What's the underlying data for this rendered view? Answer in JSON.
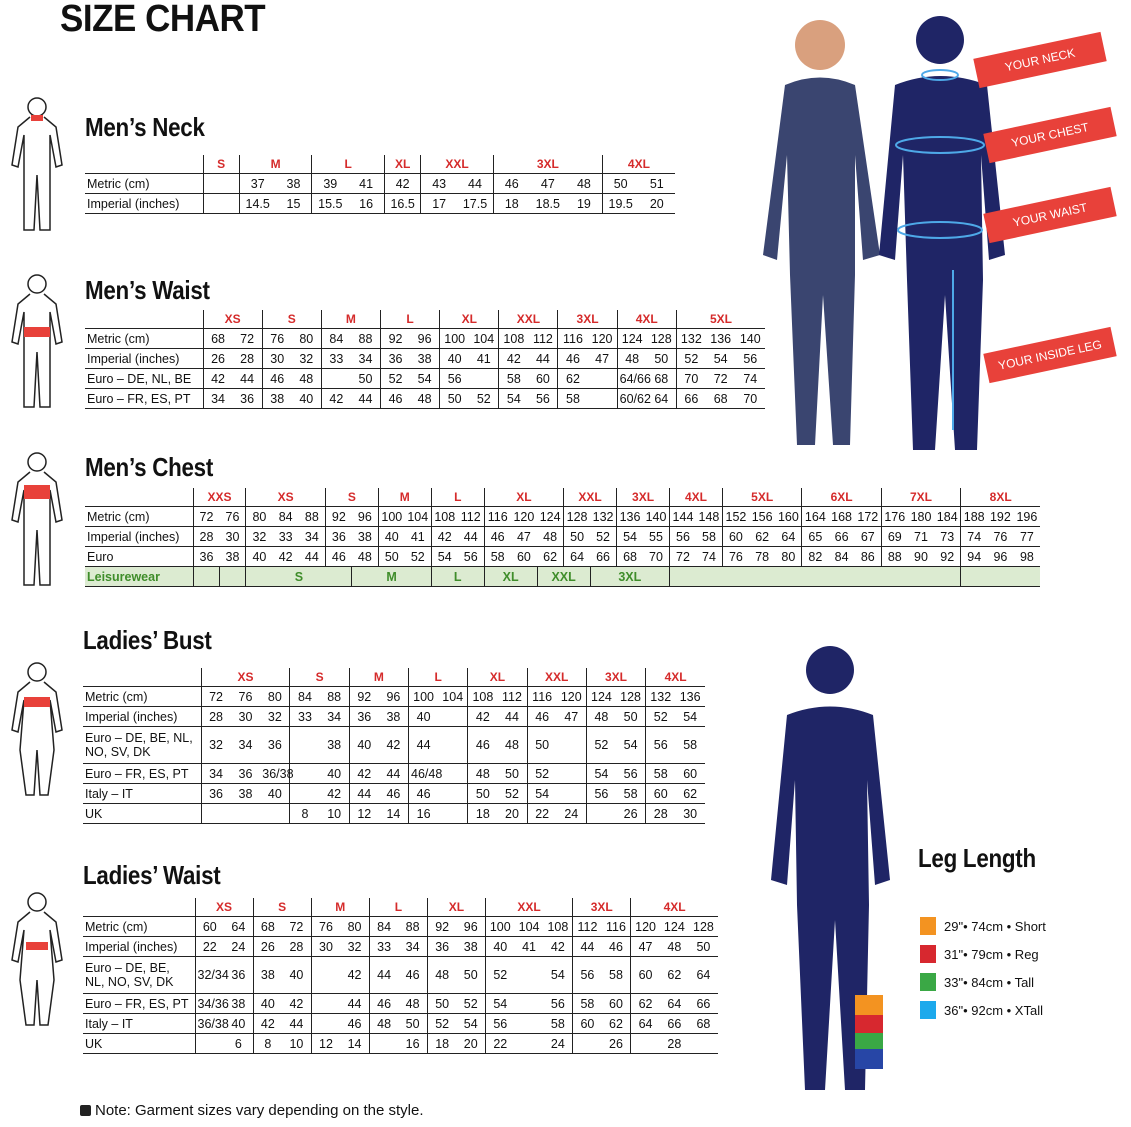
{
  "title": "SIZE CHART",
  "tables": [
    {
      "key": "mens_neck",
      "title": "Men’s Neck",
      "groups": [
        {
          "label": "S",
          "span": 1
        },
        {
          "label": "M",
          "span": 2
        },
        {
          "label": "L",
          "span": 2
        },
        {
          "label": "XL",
          "span": 1
        },
        {
          "label": "XXL",
          "span": 2
        },
        {
          "label": "3XL",
          "span": 3
        },
        {
          "label": "4XL",
          "span": 2
        }
      ],
      "rows": [
        {
          "label": "Metric (cm)",
          "cells": [
            "",
            "37",
            "38",
            "39",
            "41",
            "42",
            "43",
            "44",
            "46",
            "47",
            "48",
            "50",
            "51"
          ]
        },
        {
          "label": "Imperial (inches)",
          "cells": [
            "",
            "14.5",
            "15",
            "15.5",
            "16",
            "16.5",
            "17",
            "17.5",
            "18",
            "18.5",
            "19",
            "19.5",
            "20"
          ]
        }
      ]
    },
    {
      "key": "mens_waist",
      "title": "Men’s Waist",
      "groups": [
        {
          "label": "XS",
          "span": 2
        },
        {
          "label": "S",
          "span": 2
        },
        {
          "label": "M",
          "span": 2
        },
        {
          "label": "L",
          "span": 2
        },
        {
          "label": "XL",
          "span": 2
        },
        {
          "label": "XXL",
          "span": 2
        },
        {
          "label": "3XL",
          "span": 2
        },
        {
          "label": "4XL",
          "span": 2
        },
        {
          "label": "5XL",
          "span": 3
        }
      ],
      "rows": [
        {
          "label": "Metric (cm)",
          "cells": [
            "68",
            "72",
            "76",
            "80",
            "84",
            "88",
            "92",
            "96",
            "100",
            "104",
            "108",
            "112",
            "116",
            "120",
            "124",
            "128",
            "132",
            "136",
            "140"
          ]
        },
        {
          "label": "Imperial (inches)",
          "cells": [
            "26",
            "28",
            "30",
            "32",
            "33",
            "34",
            "36",
            "38",
            "40",
            "41",
            "42",
            "44",
            "46",
            "47",
            "48",
            "50",
            "52",
            "54",
            "56"
          ]
        },
        {
          "label": "Euro – DE, NL, BE",
          "cells": [
            "42",
            "44",
            "46",
            "48",
            "",
            "50",
            "52",
            "54",
            "56",
            "",
            "58",
            "60",
            "62",
            "",
            "64/66",
            "68",
            "70",
            "72",
            "74"
          ]
        },
        {
          "label": "Euro – FR, ES, PT",
          "cells": [
            "34",
            "36",
            "38",
            "40",
            "42",
            "44",
            "46",
            "48",
            "50",
            "52",
            "54",
            "56",
            "58",
            "",
            "60/62",
            "64",
            "66",
            "68",
            "70"
          ]
        }
      ]
    },
    {
      "key": "mens_chest",
      "title": "Men’s Chest",
      "groups": [
        {
          "label": "XXS",
          "span": 2
        },
        {
          "label": "XS",
          "span": 3
        },
        {
          "label": "S",
          "span": 2
        },
        {
          "label": "M",
          "span": 2
        },
        {
          "label": "L",
          "span": 2
        },
        {
          "label": "XL",
          "span": 3
        },
        {
          "label": "XXL",
          "span": 2
        },
        {
          "label": "3XL",
          "span": 2
        },
        {
          "label": "4XL",
          "span": 2
        },
        {
          "label": "5XL",
          "span": 3
        },
        {
          "label": "6XL",
          "span": 3
        },
        {
          "label": "7XL",
          "span": 3
        },
        {
          "label": "8XL",
          "span": 3
        }
      ],
      "rows": [
        {
          "label": "Metric (cm)",
          "cells": [
            "72",
            "76",
            "80",
            "84",
            "88",
            "92",
            "96",
            "100",
            "104",
            "108",
            "112",
            "116",
            "120",
            "124",
            "128",
            "132",
            "136",
            "140",
            "144",
            "148",
            "152",
            "156",
            "160",
            "164",
            "168",
            "172",
            "176",
            "180",
            "184",
            "188",
            "192",
            "196"
          ]
        },
        {
          "label": "Imperial (inches)",
          "cells": [
            "28",
            "30",
            "32",
            "33",
            "34",
            "36",
            "38",
            "40",
            "41",
            "42",
            "44",
            "46",
            "47",
            "48",
            "50",
            "52",
            "54",
            "55",
            "56",
            "58",
            "60",
            "62",
            "64",
            "65",
            "66",
            "67",
            "69",
            "71",
            "73",
            "74",
            "76",
            "77"
          ]
        },
        {
          "label": "Euro",
          "cells": [
            "36",
            "38",
            "40",
            "42",
            "44",
            "46",
            "48",
            "50",
            "52",
            "54",
            "56",
            "58",
            "60",
            "62",
            "64",
            "66",
            "68",
            "70",
            "72",
            "74",
            "76",
            "78",
            "80",
            "82",
            "84",
            "86",
            "88",
            "90",
            "92",
            "94",
            "96",
            "98"
          ]
        }
      ],
      "leisurewear": {
        "label": "Leisurewear",
        "spans": [
          {
            "label": "",
            "span": 1
          },
          {
            "label": "",
            "span": 1
          },
          {
            "label": "S",
            "span": 4
          },
          {
            "label": "M",
            "span": 3
          },
          {
            "label": "L",
            "span": 2
          },
          {
            "label": "XL",
            "span": 2
          },
          {
            "label": "XXL",
            "span": 2
          },
          {
            "label": "3XL",
            "span": 3
          },
          {
            "label": "",
            "span": 11
          },
          {
            "label": "",
            "span": 3
          }
        ]
      }
    },
    {
      "key": "ladies_bust",
      "title": "Ladies’ Bust",
      "groups": [
        {
          "label": "XS",
          "span": 3
        },
        {
          "label": "S",
          "span": 2
        },
        {
          "label": "M",
          "span": 2
        },
        {
          "label": "L",
          "span": 2
        },
        {
          "label": "XL",
          "span": 2
        },
        {
          "label": "XXL",
          "span": 2
        },
        {
          "label": "3XL",
          "span": 2
        },
        {
          "label": "4XL",
          "span": 2
        }
      ],
      "rows": [
        {
          "label": "Metric (cm)",
          "cells": [
            "72",
            "76",
            "80",
            "84",
            "88",
            "92",
            "96",
            "100",
            "104",
            "108",
            "112",
            "116",
            "120",
            "124",
            "128",
            "132",
            "136"
          ]
        },
        {
          "label": "Imperial (inches)",
          "cells": [
            "28",
            "30",
            "32",
            "33",
            "34",
            "36",
            "38",
            "40",
            "",
            "42",
            "44",
            "46",
            "47",
            "48",
            "50",
            "52",
            "54"
          ]
        },
        {
          "label": "Euro –  DE, BE, NL, NO, SV, DK",
          "tall": true,
          "cells": [
            "32",
            "34",
            "36",
            "",
            "38",
            "40",
            "42",
            "44",
            "",
            "46",
            "48",
            "50",
            "",
            "52",
            "54",
            "56",
            "58"
          ]
        },
        {
          "label": "Euro – FR, ES, PT",
          "cells": [
            "34",
            "36",
            "36/38",
            "",
            "40",
            "42",
            "44",
            "46/48",
            "",
            "48",
            "50",
            "52",
            "",
            "54",
            "56",
            "58",
            "60"
          ]
        },
        {
          "label": "Italy – IT",
          "cells": [
            "36",
            "38",
            "40",
            "",
            "42",
            "44",
            "46",
            "46",
            "",
            "50",
            "52",
            "54",
            "",
            "56",
            "58",
            "60",
            "62"
          ]
        },
        {
          "label": "UK",
          "cells": [
            "",
            "",
            "",
            "8",
            "10",
            "12",
            "14",
            "16",
            "",
            "18",
            "20",
            "22",
            "24",
            "",
            "26",
            "28",
            "30"
          ]
        }
      ]
    },
    {
      "key": "ladies_waist",
      "title": "Ladies’ Waist",
      "groups": [
        {
          "label": "XS",
          "span": 2
        },
        {
          "label": "S",
          "span": 2
        },
        {
          "label": "M",
          "span": 2
        },
        {
          "label": "L",
          "span": 2
        },
        {
          "label": "XL",
          "span": 2
        },
        {
          "label": "XXL",
          "span": 3
        },
        {
          "label": "3XL",
          "span": 2
        },
        {
          "label": "4XL",
          "span": 3
        }
      ],
      "rows": [
        {
          "label": "Metric (cm)",
          "cells": [
            "60",
            "64",
            "68",
            "72",
            "76",
            "80",
            "84",
            "88",
            "92",
            "96",
            "100",
            "104",
            "108",
            "112",
            "116",
            "120",
            "124",
            "128"
          ]
        },
        {
          "label": "Imperial (inches)",
          "cells": [
            "22",
            "24",
            "26",
            "28",
            "30",
            "32",
            "33",
            "34",
            "36",
            "38",
            "40",
            "41",
            "42",
            "44",
            "46",
            "47",
            "48",
            "50"
          ]
        },
        {
          "label": "Euro – DE, BE, NL, NO, SV, DK",
          "tall": true,
          "cells": [
            "32/34",
            "36",
            "38",
            "40",
            "",
            "42",
            "44",
            "46",
            "48",
            "50",
            "52",
            "",
            "54",
            "56",
            "58",
            "60",
            "62",
            "64"
          ]
        },
        {
          "label": "Euro – FR, ES, PT",
          "cells": [
            "34/36",
            "38",
            "40",
            "42",
            "",
            "44",
            "46",
            "48",
            "50",
            "52",
            "54",
            "",
            "56",
            "58",
            "60",
            "62",
            "64",
            "66"
          ]
        },
        {
          "label": "Italy – IT",
          "cells": [
            "36/38",
            "40",
            "42",
            "44",
            "",
            "46",
            "48",
            "50",
            "52",
            "54",
            "56",
            "",
            "58",
            "60",
            "62",
            "64",
            "66",
            "68"
          ]
        },
        {
          "label": "UK",
          "cells": [
            "",
            "6",
            "8",
            "10",
            "12",
            "14",
            "",
            "16",
            "18",
            "20",
            "22",
            "",
            "24",
            "",
            "26",
            "",
            "28",
            ""
          ]
        }
      ]
    }
  ],
  "measure_labels": {
    "neck": "YOUR NECK",
    "chest": "YOUR CHEST",
    "waist": "YOUR WAIST",
    "inside_leg": "YOUR INSIDE LEG"
  },
  "leg_length": {
    "title": "Leg Length",
    "items": [
      {
        "label": "29\"• 74cm • Short",
        "color": "#f39321"
      },
      {
        "label": "31\"• 79cm • Reg",
        "color": "#d7282f"
      },
      {
        "label": "33\"• 84cm • Tall",
        "color": "#3aa845"
      },
      {
        "label": "36\"• 92cm • XTall",
        "color": "#1ca9ec"
      }
    ]
  },
  "note": "Note: Garment sizes vary depending on the style.",
  "colors": {
    "size_header": "#d52b2b",
    "leisure_bg": "#dcebd1",
    "leisure_text": "#3f8d2a",
    "figure": "#1f2566",
    "banner": "#e8413a"
  }
}
